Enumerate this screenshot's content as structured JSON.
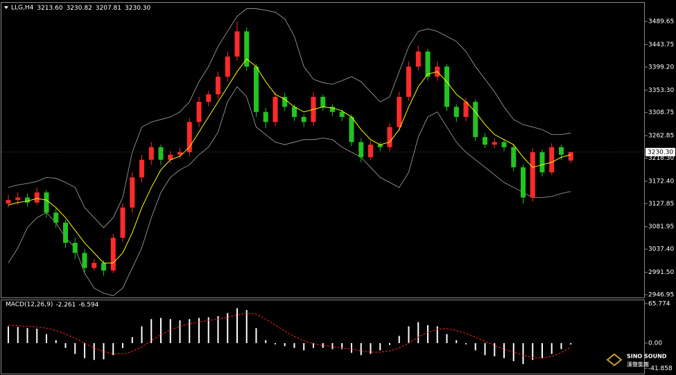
{
  "chart_data": [
    {
      "type": "candlestick",
      "title": "LLG,H4",
      "ohlc_labels": [
        {
          "value": 3213.6,
          "label": "3213.60"
        },
        {
          "value": 3230.82,
          "label": "3230.82"
        },
        {
          "value": 3207.81,
          "label": "3207.81"
        },
        {
          "value": 3230.3,
          "label": "3230.30"
        }
      ],
      "open": [
        3128,
        3135,
        3140,
        3130,
        3150,
        3110,
        3090,
        3050,
        3030,
        3000,
        3010,
        2995,
        3060,
        3120,
        3180,
        3215,
        3240,
        3215,
        3225,
        3230,
        3290,
        3330,
        3345,
        3380,
        3420,
        3470,
        3400,
        3310,
        3290,
        3340,
        3320,
        3300,
        3290,
        3340,
        3320,
        3310,
        3300,
        3250,
        3220,
        3245,
        3240,
        3280,
        3340,
        3400,
        3430,
        3380,
        3400,
        3320,
        3300,
        3330,
        3260,
        3245,
        3250,
        3240,
        3200,
        3140,
        3230,
        3190,
        3240,
        3213.6
      ],
      "high": [
        3145,
        3150,
        3148,
        3160,
        3155,
        3118,
        3095,
        3060,
        3038,
        3018,
        3015,
        3068,
        3128,
        3190,
        3225,
        3250,
        3245,
        3232,
        3238,
        3298,
        3340,
        3352,
        3390,
        3430,
        3490,
        3478,
        3405,
        3318,
        3350,
        3348,
        3325,
        3305,
        3350,
        3345,
        3325,
        3315,
        3305,
        3258,
        3252,
        3250,
        3288,
        3350,
        3410,
        3442,
        3435,
        3410,
        3405,
        3325,
        3338,
        3335,
        3268,
        3258,
        3256,
        3245,
        3205,
        3238,
        3235,
        3248,
        3245,
        3230.82
      ],
      "low": [
        3120,
        3125,
        3122,
        3125,
        3100,
        3080,
        3040,
        3018,
        2990,
        2995,
        2985,
        2990,
        3052,
        3110,
        3170,
        3205,
        3205,
        3208,
        3218,
        3222,
        3280,
        3322,
        3335,
        3370,
        3412,
        3392,
        3300,
        3278,
        3282,
        3312,
        3292,
        3280,
        3282,
        3312,
        3302,
        3292,
        3242,
        3210,
        3215,
        3232,
        3232,
        3272,
        3332,
        3392,
        3372,
        3372,
        3312,
        3290,
        3292,
        3252,
        3238,
        3238,
        3232,
        3192,
        3128,
        3132,
        3182,
        3185,
        3215,
        3207.81
      ],
      "close": [
        3135,
        3140,
        3130,
        3150,
        3110,
        3090,
        3050,
        3030,
        3000,
        3010,
        2995,
        3060,
        3120,
        3180,
        3215,
        3240,
        3215,
        3225,
        3230,
        3290,
        3330,
        3345,
        3380,
        3420,
        3470,
        3400,
        3310,
        3290,
        3340,
        3320,
        3300,
        3290,
        3340,
        3320,
        3310,
        3300,
        3250,
        3220,
        3245,
        3240,
        3280,
        3340,
        3400,
        3430,
        3380,
        3400,
        3320,
        3300,
        3330,
        3260,
        3245,
        3250,
        3240,
        3200,
        3140,
        3230,
        3190,
        3240,
        3225,
        3230.3
      ],
      "up_color": "#ff2a2a",
      "down_color": "#22c422",
      "bands": {
        "color": "#a8a8a8",
        "upper": [
          3160,
          3165,
          3168,
          3172,
          3180,
          3178,
          3170,
          3160,
          3120,
          3100,
          3080,
          3100,
          3140,
          3230,
          3280,
          3290,
          3295,
          3300,
          3310,
          3330,
          3370,
          3400,
          3440,
          3470,
          3500,
          3515,
          3515,
          3512,
          3508,
          3495,
          3460,
          3400,
          3375,
          3368,
          3365,
          3372,
          3380,
          3370,
          3350,
          3330,
          3340,
          3390,
          3440,
          3470,
          3475,
          3470,
          3460,
          3450,
          3430,
          3400,
          3375,
          3350,
          3320,
          3295,
          3285,
          3280,
          3275,
          3265,
          3265,
          3268
        ],
        "lower": [
          3010,
          3040,
          3080,
          3100,
          3110,
          3090,
          3060,
          3040,
          2990,
          2960,
          2950,
          2945,
          2960,
          3000,
          3040,
          3100,
          3150,
          3180,
          3195,
          3205,
          3225,
          3240,
          3270,
          3330,
          3360,
          3340,
          3280,
          3265,
          3250,
          3245,
          3250,
          3255,
          3255,
          3258,
          3255,
          3240,
          3230,
          3220,
          3200,
          3180,
          3170,
          3160,
          3190,
          3260,
          3300,
          3310,
          3280,
          3250,
          3230,
          3215,
          3200,
          3185,
          3170,
          3160,
          3150,
          3140,
          3140,
          3142,
          3148,
          3152
        ]
      },
      "ma": {
        "color": "#ffff00",
        "values": [
          3125,
          3130,
          3133,
          3138,
          3135,
          3120,
          3100,
          3075,
          3050,
          3030,
          3010,
          3010,
          3030,
          3070,
          3120,
          3160,
          3195,
          3215,
          3222,
          3240,
          3270,
          3300,
          3330,
          3360,
          3390,
          3415,
          3400,
          3370,
          3345,
          3335,
          3320,
          3310,
          3315,
          3320,
          3318,
          3312,
          3300,
          3275,
          3255,
          3245,
          3250,
          3275,
          3320,
          3360,
          3385,
          3390,
          3370,
          3345,
          3330,
          3310,
          3285,
          3265,
          3255,
          3245,
          3220,
          3200,
          3205,
          3210,
          3220,
          3225
        ]
      },
      "ylim": [
        2941.4,
        3526.8
      ],
      "yticks": [
        3489.65,
        3443.75,
        {
          "value": 3399.2,
          "label": "3399.20"
        },
        {
          "value": 3353.3,
          "label": "3353.30"
        },
        3308.75,
        3262.85,
        {
          "value": 3218.3,
          "label": "3218.30"
        },
        {
          "value": 3172.4,
          "label": "3172.40"
        },
        3127.85,
        3081.95,
        {
          "value": 3037.4,
          "label": "3037.40"
        },
        {
          "value": 2991.5,
          "label": "2991.50"
        },
        2946.95
      ],
      "current_price": {
        "value": 3230.3,
        "label": "3230.30"
      }
    },
    {
      "type": "macd",
      "title": "MACD(12,26,9)",
      "title_values": [
        -2.261,
        -6.594
      ],
      "histogram": {
        "color": "#ffffff",
        "values": [
          28,
          27,
          25,
          24,
          15,
          5,
          -8,
          -18,
          -25,
          -28,
          -27,
          -20,
          -8,
          10,
          28,
          40,
          42,
          40,
          38,
          40,
          42,
          43,
          45,
          50,
          58,
          55,
          25,
          5,
          -2,
          -5,
          -8,
          -12,
          -8,
          -8,
          -10,
          -10,
          -16,
          -20,
          -18,
          -12,
          -3,
          12,
          28,
          35,
          30,
          28,
          15,
          5,
          -2,
          -12,
          -20,
          -22,
          -25,
          -30,
          -35,
          -28,
          -25,
          -18,
          -10,
          -2.261
        ]
      },
      "signal": {
        "color": "#ff2020",
        "values": [
          30,
          29,
          28,
          27,
          25,
          21,
          15,
          8,
          0,
          -8,
          -14,
          -18,
          -18,
          -14,
          -6,
          4,
          14,
          22,
          28,
          32,
          35,
          38,
          40,
          43,
          47,
          50,
          48,
          40,
          30,
          20,
          11,
          4,
          -1,
          -4,
          -6,
          -8,
          -10,
          -13,
          -15,
          -15,
          -13,
          -8,
          0,
          10,
          18,
          23,
          24,
          21,
          16,
          10,
          3,
          -4,
          -10,
          -15,
          -20,
          -24,
          -25,
          -22,
          -16,
          -6.594
        ]
      },
      "ylim": [
        -50.78,
        71.35
      ],
      "yticks": [
        65.774,
        {
          "value": 0,
          "label": "0.00"
        },
        -41.858
      ]
    }
  ],
  "logo": {
    "name": "SINO SOUND",
    "subtitle": "漢聲集團"
  }
}
